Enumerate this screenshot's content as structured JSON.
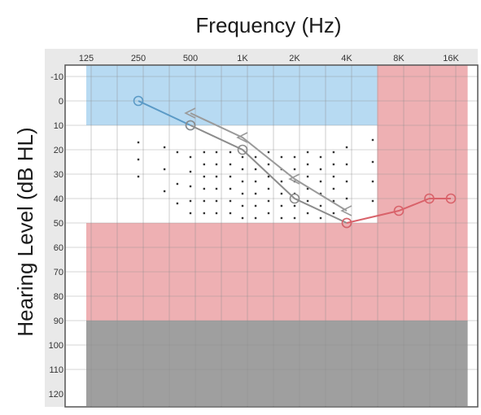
{
  "chart_data": {
    "type": "line",
    "title": "Frequency (Hz)",
    "ylabel": "Hearing Level (dB HL)",
    "x_tick_labels": [
      "125",
      "250",
      "500",
      "1K",
      "2K",
      "4K",
      "8K",
      "16K"
    ],
    "x_tick_values": [
      125,
      250,
      500,
      1000,
      2000,
      4000,
      8000,
      16000
    ],
    "y_tick_labels": [
      "-10",
      "0",
      "10",
      "20",
      "30",
      "40",
      "50",
      "60",
      "70",
      "80",
      "90",
      "100",
      "110",
      "120"
    ],
    "y_tick_values": [
      -10,
      0,
      10,
      20,
      30,
      40,
      50,
      60,
      70,
      80,
      90,
      100,
      110,
      120
    ],
    "ylim": [
      -10,
      120
    ],
    "y_axis_inverted": true,
    "x_scale": "log2",
    "grid": true,
    "regions": [
      {
        "kind": "band",
        "x_from": 125,
        "x_to": 6000,
        "y_from": -15,
        "y_to": 10,
        "color": "#b7daf2"
      },
      {
        "kind": "band",
        "x_from": 6000,
        "x_to": 20000,
        "y_from": -15,
        "y_to": 50,
        "color": "#eeb0b3"
      },
      {
        "kind": "band",
        "x_from": 125,
        "x_to": 20000,
        "y_from": 50,
        "y_to": 90,
        "color": "#eeb0b3"
      },
      {
        "kind": "band",
        "x_from": 125,
        "x_to": 20000,
        "y_from": 90,
        "y_to": 125,
        "color": "#9f9f9f"
      }
    ],
    "series": [
      {
        "marker": "circle",
        "color": "#5b9ac6",
        "x": [
          250,
          500
        ],
        "y": [
          0,
          10
        ]
      },
      {
        "marker": "circle",
        "color": "#8c8c8c",
        "x": [
          500,
          1000,
          2000,
          4000
        ],
        "y": [
          10,
          20,
          40,
          50
        ]
      },
      {
        "marker": "circle",
        "color": "#d9626a",
        "x": [
          4000,
          8000,
          12000,
          16000
        ],
        "y": [
          50,
          45,
          40,
          40
        ]
      },
      {
        "marker": "open-chevron",
        "color": "#9a9a9a",
        "x": [
          500,
          1000,
          2000,
          4000
        ],
        "y": [
          5,
          15,
          32,
          45
        ]
      }
    ],
    "speech_banana_dots": [
      [
        250,
        17
      ],
      [
        250,
        24
      ],
      [
        250,
        31
      ],
      [
        354,
        19
      ],
      [
        354,
        28
      ],
      [
        354,
        37
      ],
      [
        420,
        21
      ],
      [
        420,
        34
      ],
      [
        420,
        42
      ],
      [
        500,
        23
      ],
      [
        500,
        29
      ],
      [
        500,
        35
      ],
      [
        500,
        41
      ],
      [
        500,
        46
      ],
      [
        600,
        21
      ],
      [
        600,
        26
      ],
      [
        600,
        31
      ],
      [
        600,
        36
      ],
      [
        600,
        41
      ],
      [
        600,
        46
      ],
      [
        707,
        21
      ],
      [
        707,
        26
      ],
      [
        707,
        31
      ],
      [
        707,
        36
      ],
      [
        707,
        41
      ],
      [
        707,
        46
      ],
      [
        850,
        21
      ],
      [
        850,
        26
      ],
      [
        850,
        31
      ],
      [
        850,
        36
      ],
      [
        850,
        41
      ],
      [
        850,
        46
      ],
      [
        1000,
        23
      ],
      [
        1000,
        28
      ],
      [
        1000,
        33
      ],
      [
        1000,
        38
      ],
      [
        1000,
        43
      ],
      [
        1000,
        48
      ],
      [
        1190,
        23
      ],
      [
        1190,
        28
      ],
      [
        1190,
        33
      ],
      [
        1190,
        38
      ],
      [
        1190,
        43
      ],
      [
        1190,
        48
      ],
      [
        1414,
        21
      ],
      [
        1414,
        26
      ],
      [
        1414,
        31
      ],
      [
        1414,
        36
      ],
      [
        1414,
        41
      ],
      [
        1414,
        46
      ],
      [
        1680,
        23
      ],
      [
        1680,
        28
      ],
      [
        1680,
        33
      ],
      [
        1680,
        38
      ],
      [
        1680,
        43
      ],
      [
        1680,
        48
      ],
      [
        2000,
        23
      ],
      [
        2000,
        28
      ],
      [
        2000,
        33
      ],
      [
        2000,
        38
      ],
      [
        2000,
        43
      ],
      [
        2000,
        48
      ],
      [
        2380,
        21
      ],
      [
        2380,
        26
      ],
      [
        2380,
        31
      ],
      [
        2380,
        36
      ],
      [
        2380,
        41
      ],
      [
        2380,
        46
      ],
      [
        2828,
        23
      ],
      [
        2828,
        28
      ],
      [
        2828,
        33
      ],
      [
        2828,
        38
      ],
      [
        2828,
        43
      ],
      [
        2828,
        48
      ],
      [
        3360,
        21
      ],
      [
        3360,
        26
      ],
      [
        3360,
        31
      ],
      [
        3360,
        36
      ],
      [
        3360,
        41
      ],
      [
        3360,
        46
      ],
      [
        4000,
        19
      ],
      [
        4000,
        26
      ],
      [
        4000,
        33
      ],
      [
        4000,
        40
      ],
      [
        5657,
        16
      ],
      [
        5657,
        25
      ],
      [
        5657,
        33
      ],
      [
        5657,
        41
      ]
    ]
  }
}
